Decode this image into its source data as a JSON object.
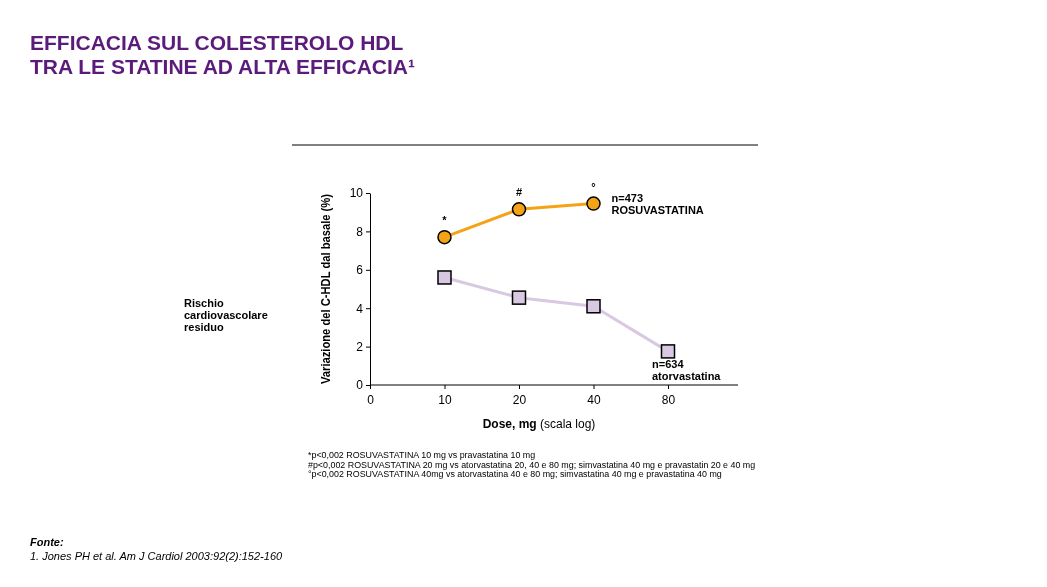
{
  "chart_data": {
    "type": "line",
    "title": "EFFICACIA SUL COLESTEROLO HDL\nTRA LE STATINE AD ALTA EFFICACIA¹",
    "xlabel": "Dose, mg (scala log)",
    "ylabel": "Variazione del C-HDL dal basale (%)",
    "categories": [
      "0",
      "10",
      "20",
      "40",
      "80"
    ],
    "ylim": [
      0,
      10
    ],
    "yticks": [
      0,
      2,
      4,
      6,
      8,
      10
    ],
    "grid": false,
    "series": [
      {
        "name": "n=473 ROSUVASTATINA",
        "color": "#f5a316",
        "marker": "circle",
        "values": [
          null,
          7.7,
          9.15,
          9.45,
          null
        ]
      },
      {
        "name": "n=634 atorvastatina",
        "color": "#d8c8e2",
        "marker": "square",
        "values": [
          null,
          5.6,
          4.55,
          4.1,
          1.75
        ]
      }
    ],
    "annotations": [
      {
        "text": "*",
        "x": "10",
        "y": 7.7
      },
      {
        "text": "#",
        "x": "20",
        "y": 9.15
      },
      {
        "text": "°",
        "x": "40",
        "y": 9.45
      },
      "Rischio cardiovascolare residuo",
      "*p<0,002 ROSUVASTATINA 10 mg vs pravastatina 10 mg",
      "#p<0,002 ROSUVASTATINA 20 mg vs atorvastatina 20, 40 e 80 mg; simvastatina 40 mg e pravastatin 20 e 40 mg",
      "°p<0,002 ROSUVASTATINA 40mg vs atorvastatina 40 e 80 mg; simvastatina 40 mg e pravastatina 40 mg",
      "Fonte:",
      "1. Jones PH et al. Am J Cardiol 2003:92(2):152-160"
    ]
  }
}
